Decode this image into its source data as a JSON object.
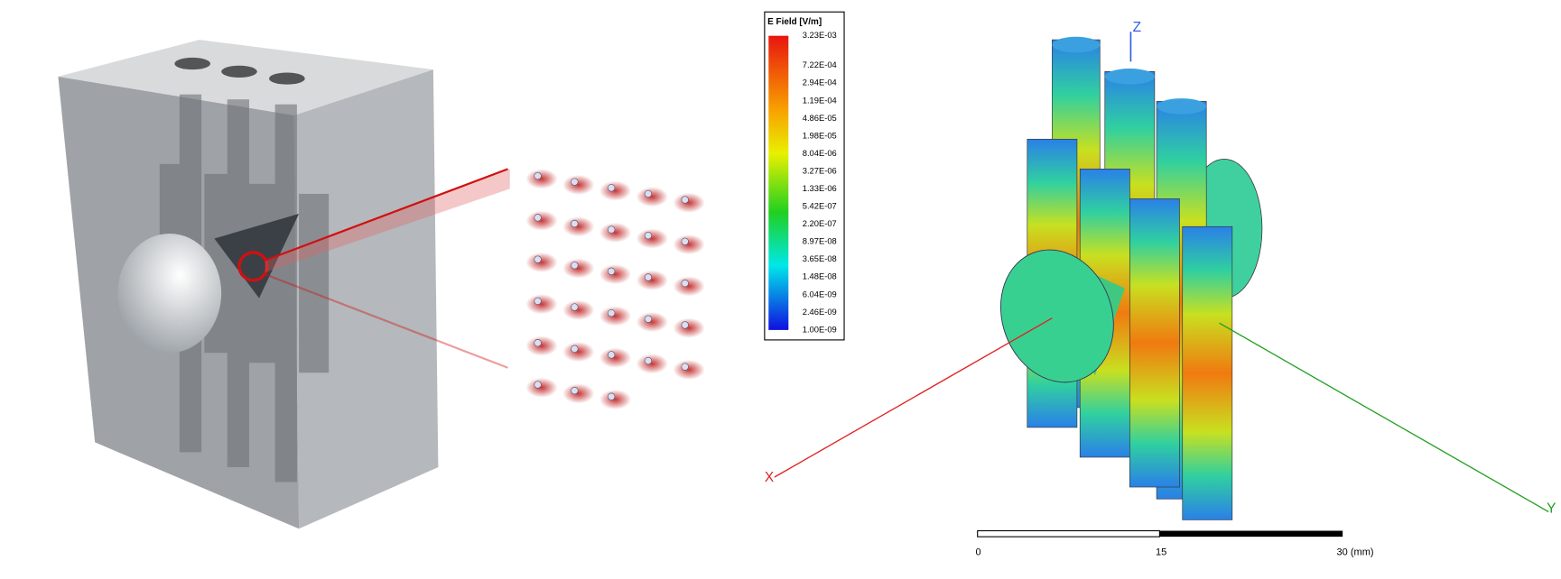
{
  "legend": {
    "title": "E Field [V/m]",
    "labels": [
      "3.23E-03",
      "7.22E-04",
      "2.94E-04",
      "1.19E-04",
      "4.86E-05",
      "1.98E-05",
      "8.04E-06",
      "3.27E-06",
      "1.33E-06",
      "5.42E-07",
      "2.20E-07",
      "8.97E-08",
      "3.65E-08",
      "1.48E-08",
      "6.04E-09",
      "2.46E-09",
      "1.00E-09"
    ]
  },
  "axes": {
    "z": "Z",
    "x": "X",
    "y": "Y"
  },
  "scale_bar": {
    "labels": [
      "0",
      "15",
      "30 (mm)"
    ]
  }
}
